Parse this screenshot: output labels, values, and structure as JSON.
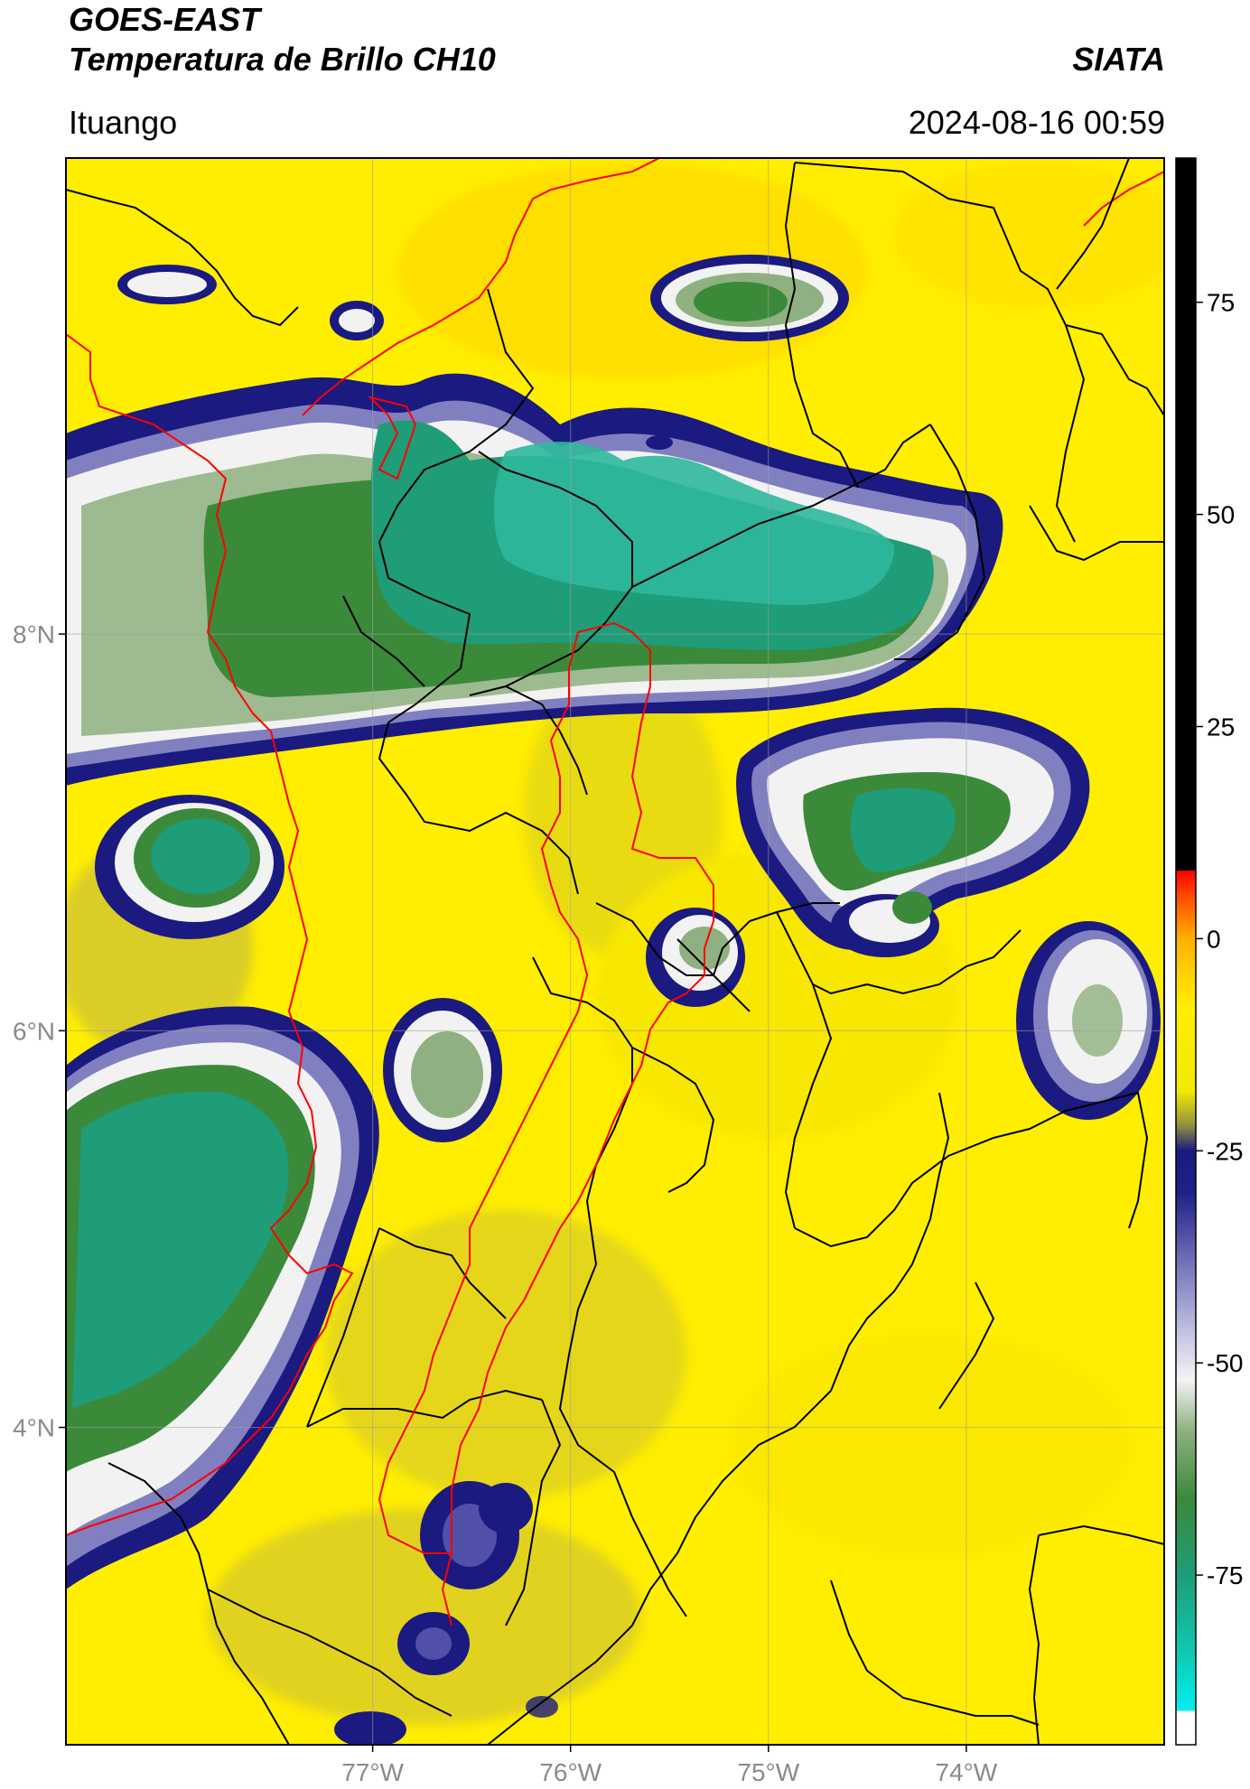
{
  "header": {
    "satellite": "GOES-EAST",
    "product": "Temperatura de Brillo CH10",
    "agency": "SIATA",
    "region": "Ituango",
    "datetime": "2024-08-16 00:59"
  },
  "map": {
    "lat_range": [
      2.4,
      10.4
    ],
    "lon_range": [
      -78.55,
      -73.0
    ],
    "lat_ticks": [
      {
        "value": 8,
        "label": "8°N"
      },
      {
        "value": 6,
        "label": "6°N"
      },
      {
        "value": 4,
        "label": "4°N"
      }
    ],
    "lon_ticks": [
      {
        "value": -77,
        "label": "77°W"
      },
      {
        "value": -76,
        "label": "76°W"
      },
      {
        "value": -75,
        "label": "75°W"
      },
      {
        "value": -74,
        "label": "74°W"
      }
    ],
    "colors": {
      "background": "#ffee00",
      "cold": "#1c9c78",
      "very_cold": "#2fb89c",
      "cloud_white": "#f2f2f2",
      "cloud_blue": "#1a1a80",
      "border_black": "#000000",
      "border_red": "#ff0000",
      "gridline": "#a0a0a0"
    }
  },
  "colorbar": {
    "min": -95,
    "max": 92,
    "ticks": [
      {
        "value": 75,
        "label": "75"
      },
      {
        "value": 50,
        "label": "50"
      },
      {
        "value": 25,
        "label": "25"
      },
      {
        "value": 0,
        "label": "0"
      },
      {
        "value": -25,
        "label": "-25"
      },
      {
        "value": -50,
        "label": "-50"
      },
      {
        "value": -75,
        "label": "-75"
      }
    ],
    "stops": [
      {
        "value": -95,
        "color": "#ffffff"
      },
      {
        "value": -91,
        "color": "#ffffff"
      },
      {
        "value": -91,
        "color": "#00f0f0"
      },
      {
        "value": -84,
        "color": "#10c8b0"
      },
      {
        "value": -75,
        "color": "#1f9c78"
      },
      {
        "value": -66,
        "color": "#3a8a3a"
      },
      {
        "value": -58,
        "color": "#8fb080"
      },
      {
        "value": -52,
        "color": "#f4f4f4"
      },
      {
        "value": -47,
        "color": "#c8c8e4"
      },
      {
        "value": -38,
        "color": "#7070b8"
      },
      {
        "value": -30,
        "color": "#202088"
      },
      {
        "value": -25,
        "color": "#1a1a80"
      },
      {
        "value": -22,
        "color": "#909040"
      },
      {
        "value": -18,
        "color": "#f0ea00"
      },
      {
        "value": -8,
        "color": "#ffee00"
      },
      {
        "value": 0,
        "color": "#ffb000"
      },
      {
        "value": 5,
        "color": "#ff4a00"
      },
      {
        "value": 8,
        "color": "#ff0000"
      },
      {
        "value": 8,
        "color": "#000000"
      },
      {
        "value": 92,
        "color": "#000000"
      }
    ]
  }
}
